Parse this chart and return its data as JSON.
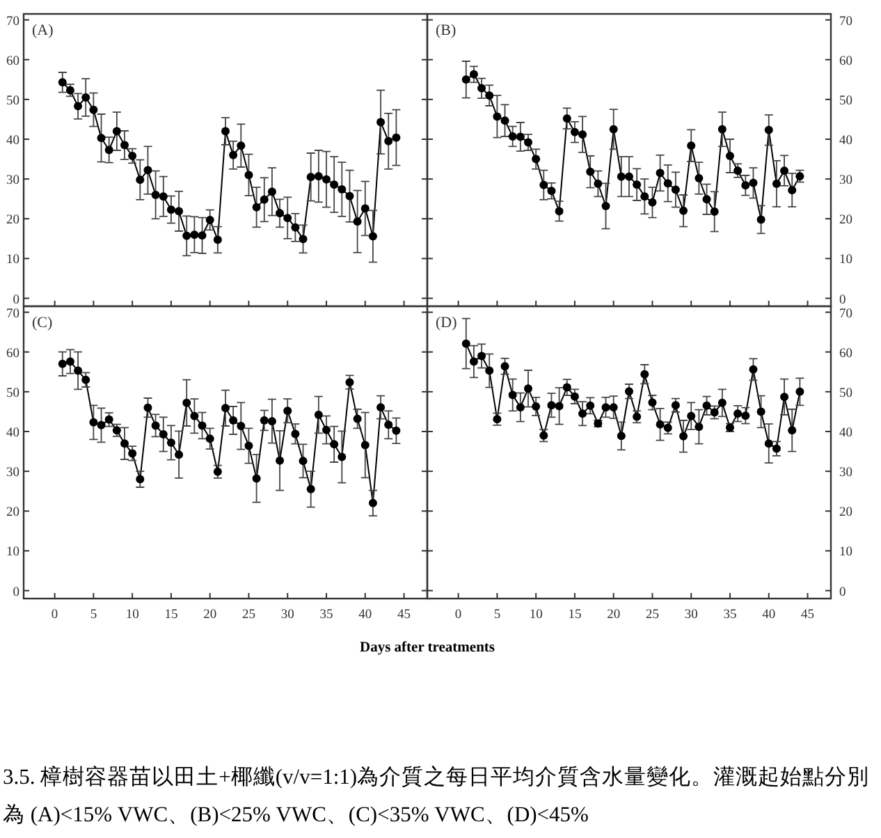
{
  "chart_data": [
    {
      "type": "line",
      "title": "(A)",
      "x": [
        1,
        2,
        3,
        4,
        5,
        6,
        7,
        8,
        9,
        10,
        11,
        12,
        13,
        14,
        15,
        16,
        17,
        18,
        19,
        20,
        21,
        22,
        23,
        24,
        25,
        26,
        27,
        28,
        29,
        30,
        31,
        32,
        33,
        34,
        35,
        36,
        37,
        38,
        39,
        40,
        41,
        42,
        43,
        44
      ],
      "xlim": [
        -4,
        48
      ],
      "xticks": [
        0,
        5,
        10,
        15,
        20,
        25,
        30,
        35,
        40,
        45
      ],
      "ylim": [
        -2,
        71.5
      ],
      "yticks": [
        0,
        10,
        20,
        30,
        40,
        50,
        60,
        70
      ],
      "tick_labels": "y",
      "marker": "circle",
      "line_style": "solid",
      "grid": false,
      "series": [
        {
          "color": "#000000",
          "values": [
            54.3,
            52.3,
            48.3,
            50.5,
            47.4,
            40.3,
            37.3,
            42,
            38.5,
            35.8,
            29.8,
            32.2,
            26,
            25.6,
            22.3,
            21.9,
            15.7,
            16,
            15.8,
            19.7,
            14.7,
            42,
            36,
            38.4,
            31,
            22.9,
            24.8,
            26.8,
            21.4,
            20.2,
            17.8,
            14.9,
            30.5,
            30.7,
            29.9,
            28.6,
            27.4,
            25.7,
            19.3,
            22.6,
            15.6,
            44.3,
            39.5,
            40.4
          ],
          "errors": [
            2.5,
            1.5,
            3.2,
            4.7,
            4.2,
            6,
            3.2,
            4.8,
            3.6,
            1.8,
            5,
            6,
            6,
            5,
            3.4,
            5,
            5,
            4.5,
            4.5,
            2.5,
            3.3,
            3.4,
            3.5,
            5.4,
            5.2,
            5,
            5.5,
            6,
            3.5,
            5.2,
            3.5,
            3.5,
            6,
            6.5,
            7,
            7,
            6.8,
            6.5,
            7.8,
            6.8,
            6.5,
            8,
            7,
            7
          ]
        }
      ]
    },
    {
      "type": "line",
      "title": "(B)",
      "x": [
        1,
        2,
        3,
        4,
        5,
        6,
        7,
        8,
        9,
        10,
        11,
        12,
        13,
        14,
        15,
        16,
        17,
        18,
        19,
        20,
        21,
        22,
        23,
        24,
        25,
        26,
        27,
        28,
        29,
        30,
        31,
        32,
        33,
        34,
        35,
        36,
        37,
        38,
        39,
        40,
        41,
        42,
        43,
        44
      ],
      "xlim": [
        -4,
        48
      ],
      "xticks": [
        0,
        5,
        10,
        15,
        20,
        25,
        30,
        35,
        40,
        45
      ],
      "ylim": [
        -2,
        71.5
      ],
      "yticks": [
        0,
        10,
        20,
        30,
        40,
        50,
        60,
        70
      ],
      "tick_labels": "y",
      "marker": "circle",
      "line_style": "solid",
      "grid": false,
      "series": [
        {
          "color": "#000000",
          "values": [
            55,
            56.3,
            52.8,
            51,
            45.7,
            44.7,
            40.7,
            40.6,
            39.2,
            35,
            28.5,
            27,
            21.9,
            45.2,
            41.8,
            41.2,
            31.8,
            28.8,
            23.2,
            42.5,
            30.6,
            30.6,
            28.6,
            25.6,
            24.1,
            31.5,
            28.9,
            27.3,
            22,
            38.4,
            30.2,
            24.9,
            21.8,
            42.5,
            35.8,
            32.1,
            28.4,
            29,
            19.8,
            42.3,
            28.8,
            32.1,
            27.2,
            30.7
          ],
          "errors": [
            4.6,
            2,
            2.5,
            2.6,
            5.3,
            4,
            2.5,
            3.6,
            2,
            2.5,
            3.7,
            2,
            2.5,
            2.6,
            2.6,
            4.5,
            4,
            3.2,
            5.7,
            5,
            5,
            5,
            4,
            4.4,
            3.8,
            4.5,
            4.6,
            4.4,
            4,
            4,
            4,
            3.8,
            5,
            4.3,
            4.2,
            1.7,
            2.5,
            3.8,
            3.5,
            3.8,
            5.8,
            3.8,
            4.2,
            1.5
          ]
        }
      ]
    },
    {
      "type": "line",
      "title": "(C)",
      "x": [
        1,
        2,
        3,
        4,
        5,
        6,
        7,
        8,
        9,
        10,
        11,
        12,
        13,
        14,
        15,
        16,
        17,
        18,
        19,
        20,
        21,
        22,
        23,
        24,
        25,
        26,
        27,
        28,
        29,
        30,
        31,
        32,
        33,
        34,
        35,
        36,
        37,
        38,
        39,
        40,
        41,
        42,
        43,
        44
      ],
      "xlim": [
        -4,
        48
      ],
      "xticks": [
        0,
        5,
        10,
        15,
        20,
        25,
        30,
        35,
        40,
        45
      ],
      "ylim": [
        -2,
        71.5
      ],
      "yticks": [
        0,
        10,
        20,
        30,
        40,
        50,
        60,
        70
      ],
      "marker": "circle",
      "line_style": "solid",
      "grid": false,
      "xlabel": "Days after treatments",
      "series": [
        {
          "color": "#000000",
          "values": [
            57,
            57.6,
            55.3,
            53,
            42.3,
            41.6,
            43,
            40.3,
            37,
            34.5,
            28,
            46,
            41.5,
            39.3,
            37.2,
            34.2,
            47.2,
            43.9,
            41.5,
            38.2,
            29.9,
            45.9,
            42.8,
            41.4,
            36.4,
            28.2,
            42.8,
            42.6,
            32.7,
            45.2,
            39.4,
            32.6,
            25.5,
            44.2,
            40.4,
            36.8,
            33.6,
            52.4,
            43.2,
            36.6,
            22,
            46.1,
            41.7,
            40.2
          ],
          "errors": [
            3,
            3,
            4.7,
            1.8,
            4.3,
            4.3,
            1.7,
            1.5,
            4,
            1.8,
            2,
            2.4,
            2.8,
            4.3,
            4.3,
            5.9,
            5.8,
            4.3,
            3.3,
            2.6,
            1.6,
            4.5,
            3.5,
            5.9,
            4.4,
            6,
            2.5,
            5.5,
            7.5,
            3,
            2.5,
            4.2,
            4.5,
            4.6,
            3.5,
            4.5,
            6.5,
            1.7,
            2.4,
            8.2,
            3.2,
            2.9,
            3.5,
            3.2
          ]
        }
      ]
    },
    {
      "type": "line",
      "title": "(D)",
      "x": [
        1,
        2,
        3,
        4,
        5,
        6,
        7,
        8,
        9,
        10,
        11,
        12,
        13,
        14,
        15,
        16,
        17,
        18,
        19,
        20,
        21,
        22,
        23,
        24,
        25,
        26,
        27,
        28,
        29,
        30,
        31,
        32,
        33,
        34,
        35,
        36,
        37,
        38,
        39,
        40,
        41,
        42,
        43,
        44
      ],
      "xlim": [
        -4,
        48
      ],
      "xticks": [
        0,
        5,
        10,
        15,
        20,
        25,
        30,
        35,
        40,
        45
      ],
      "ylim": [
        -2,
        71.5
      ],
      "yticks": [
        0,
        10,
        20,
        30,
        40,
        50,
        60,
        70
      ],
      "marker": "circle",
      "line_style": "solid",
      "grid": false,
      "annotations": [
        "3.5. 樟樹容器苗以田土+椰纖(v/v=1:1)為介質之每日平均介質含水量變化。灌溉起始點分別為 (A)<15% VWC、(B)<25% VWC、(C)<35% VWC、(D)<45%"
      ],
      "series": [
        {
          "color": "#000000",
          "values": [
            62.1,
            57.6,
            59,
            55.3,
            43.1,
            56.4,
            49.2,
            46.1,
            50.8,
            46.3,
            39,
            46.6,
            46.4,
            51.1,
            48.8,
            44.5,
            46.5,
            42,
            46.1,
            46.1,
            38.9,
            50.1,
            43.7,
            54.4,
            47.3,
            41.8,
            40.9,
            46.6,
            38.8,
            43.9,
            41.2,
            46.5,
            44.8,
            47.2,
            41,
            44.5,
            44,
            55.6,
            45,
            37,
            35.7,
            48.7,
            40.3,
            50
          ],
          "errors": [
            6.3,
            4,
            3,
            4.2,
            1.5,
            2,
            4,
            3.6,
            4.6,
            2.3,
            1.5,
            3,
            4.6,
            2,
            1.8,
            3,
            2,
            0.8,
            2.5,
            2.8,
            3.5,
            1.8,
            1.5,
            2.4,
            1.8,
            4,
            1.5,
            1.7,
            4,
            3.4,
            4.3,
            2.3,
            1.6,
            3.4,
            1,
            2,
            2,
            2.7,
            4,
            4.9,
            1.8,
            4.5,
            5.3,
            3.4
          ]
        }
      ]
    }
  ]
}
